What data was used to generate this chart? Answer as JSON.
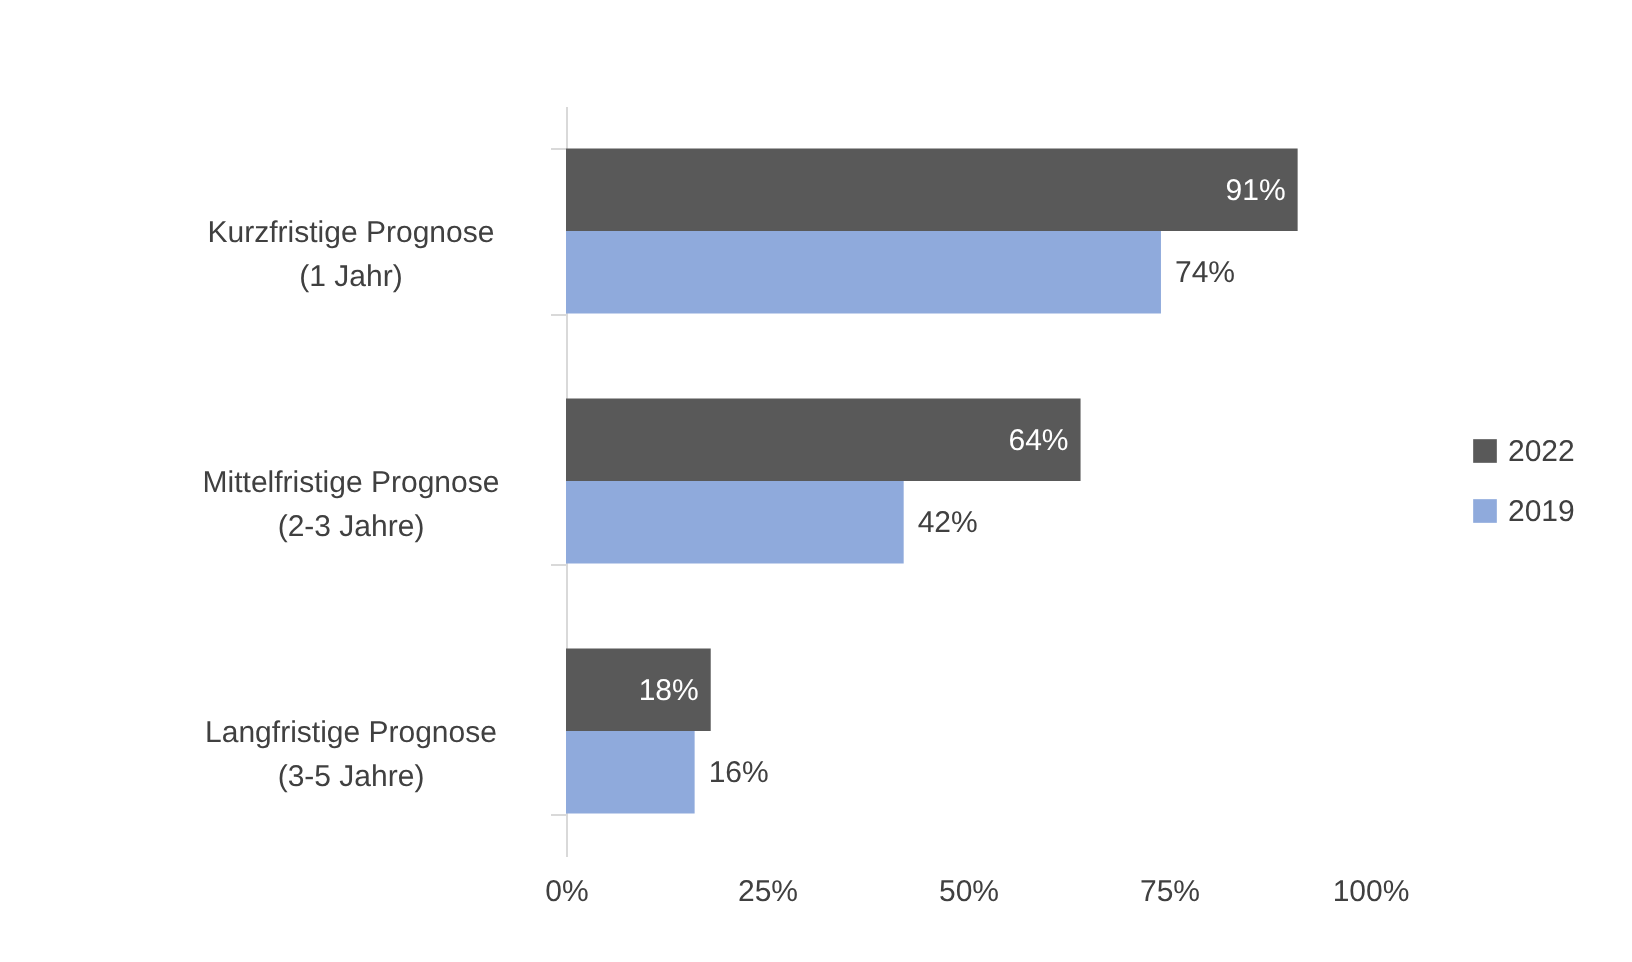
{
  "chart_data": {
    "type": "bar",
    "orientation": "horizontal",
    "categories": [
      "Kurzfristige Prognose\n(1 Jahr)",
      "Mittelfristige Prognose\n(2-3 Jahre)",
      "Langfristige Prognose\n(3-5 Jahre)"
    ],
    "series": [
      {
        "name": "2022",
        "color": "#595959",
        "values": [
          91,
          64,
          18
        ],
        "value_labels": [
          "91%",
          "64%",
          "18%"
        ]
      },
      {
        "name": "2019",
        "color": "#8faadc",
        "values": [
          74,
          42,
          16
        ],
        "value_labels": [
          "74%",
          "42%",
          "16%"
        ]
      }
    ],
    "xlim": [
      0,
      100
    ],
    "xticks": [
      {
        "value": 0,
        "label": "0%"
      },
      {
        "value": 25,
        "label": "25%"
      },
      {
        "value": 50,
        "label": "50%"
      },
      {
        "value": 75,
        "label": "75%"
      },
      {
        "value": 100,
        "label": "100%"
      }
    ],
    "legend": "right",
    "grid": false
  }
}
